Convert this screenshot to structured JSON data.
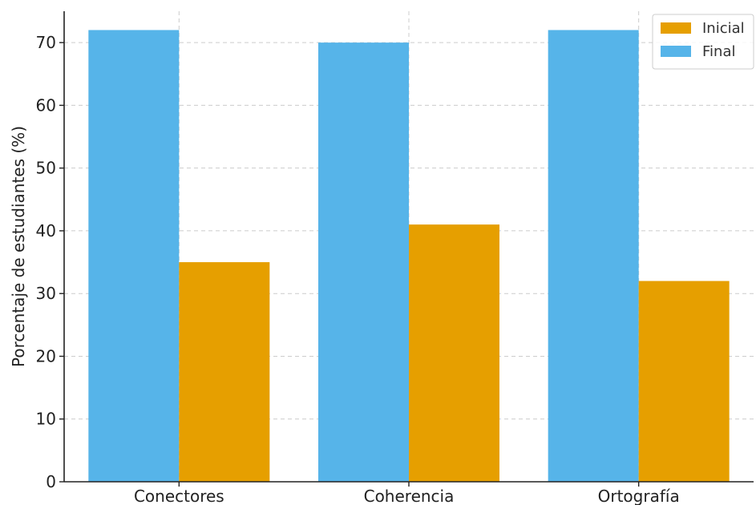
{
  "chart_data": {
    "type": "bar",
    "title": "",
    "xlabel": "",
    "ylabel": "Porcentaje de estudiantes (%)",
    "categories": [
      "Conectores",
      "Coherencia",
      "Ortografía"
    ],
    "series": [
      {
        "name": "Final",
        "color": "#56B4E9",
        "values": [
          72,
          70,
          72
        ]
      },
      {
        "name": "Inicial",
        "color": "#E69F00",
        "values": [
          35,
          41,
          32
        ]
      }
    ],
    "ylim": [
      0,
      75
    ],
    "yticks": [
      0,
      10,
      20,
      30,
      40,
      50,
      60,
      70
    ],
    "grid": true,
    "legend": {
      "placement": "top-right",
      "entries": [
        {
          "label": "Inicial",
          "color": "#E69F00"
        },
        {
          "label": "Final",
          "color": "#56B4E9"
        }
      ]
    }
  }
}
